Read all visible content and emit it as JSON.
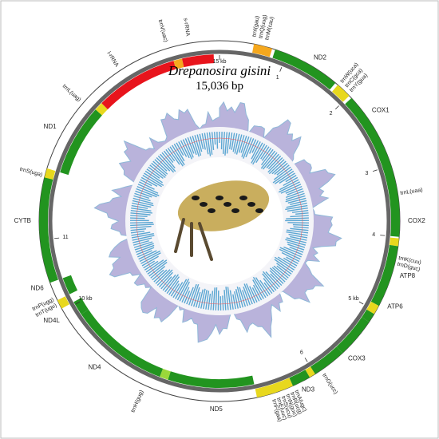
{
  "title": "Drepanosira gisini",
  "subtitle": "15,036 bp",
  "genes": [
    "trnI(gau)",
    "trnQ(uug)",
    "trnM(cau)",
    "ND2",
    "trnW(uca)",
    "trnC(gca)",
    "trnY(gua)",
    "COX1",
    "trnL(uaa)",
    "COX2",
    "trnK(cuu)",
    "trnD(guc)",
    "ATP8",
    "ATP6",
    "COX3",
    "trnG(ucc)",
    "ND3",
    "trnA(ugc)",
    "trnR(ucg)",
    "trnN(guu)",
    "trnS(ucu)",
    "trnE(uuc)",
    "trnF(gaa)",
    "ND5",
    "trnH(gug)",
    "ND4",
    "ND4L",
    "trnT(ugu)",
    "trnP(ugg)",
    "ND6",
    "CYTB",
    "trnS(uga)",
    "ND1",
    "trnL(uag)",
    "l-rRNA",
    "trnV(uac)",
    "s-rRNA"
  ],
  "scale_labels": [
    "1",
    "2",
    "3",
    "4",
    "5 kb",
    "6",
    "10 kb",
    "11",
    "15 kb"
  ]
}
